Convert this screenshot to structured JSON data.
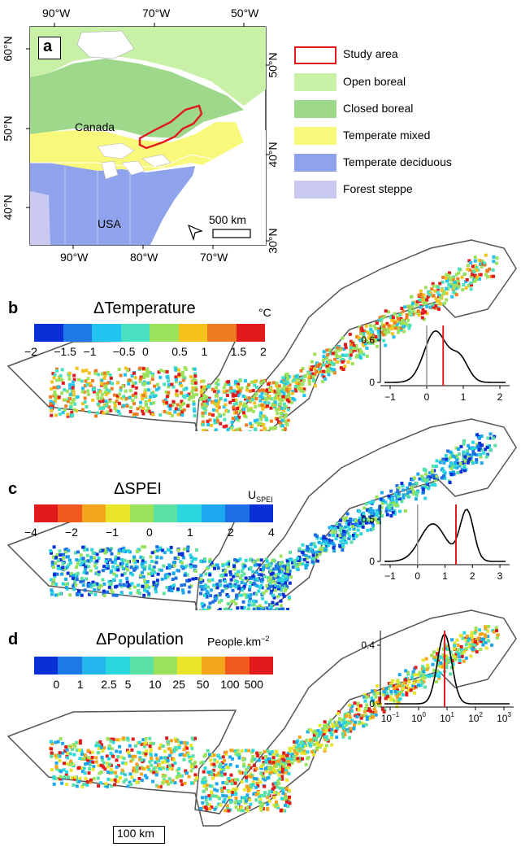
{
  "panel_a": {
    "letter": "a",
    "top_axis": [
      "90°W",
      "70°W",
      "50°W"
    ],
    "bottom_axis": [
      "90°W",
      "80°W",
      "70°W"
    ],
    "left_axis": [
      "60°N",
      "50°N",
      "40°N"
    ],
    "right_axis": [
      "50°N",
      "40°N",
      "30°N"
    ],
    "labels": {
      "canada": "Canada",
      "usa": "USA",
      "scale": "500 km"
    },
    "legend": [
      {
        "label": "Study area",
        "color": "#ffffff",
        "border": "#e31a1c"
      },
      {
        "label": "Open boreal",
        "color": "#c9f0a7"
      },
      {
        "label": "Closed boreal",
        "color": "#9ed88a"
      },
      {
        "label": "Temperate mixed",
        "color": "#f8f87a"
      },
      {
        "label": "Temperate deciduous",
        "color": "#8fa2ec"
      },
      {
        "label": "Forest steppe",
        "color": "#cac9f2"
      }
    ]
  },
  "panel_b": {
    "letter": "b",
    "title": "ΔTemperature",
    "unit": "°C",
    "scale_colors": [
      "#0b2fd6",
      "#1e78e6",
      "#22c3ee",
      "#49e0bf",
      "#9be25a",
      "#f4c21b",
      "#f07a1f",
      "#e31a1c"
    ],
    "scale_ticks": [
      "−2",
      "−1.5",
      "−1",
      "−0.5",
      "0",
      "0.5",
      "1",
      "1.5",
      "2"
    ],
    "density": {
      "y_ticks": [
        "0",
        "0.6"
      ],
      "x_ticks": [
        "−1",
        "0",
        "1",
        "2"
      ],
      "ref_line": 0,
      "mean_line": 0.45
    }
  },
  "panel_c": {
    "letter": "c",
    "title": "ΔSPEI",
    "unit": "U",
    "unit_sub": "SPEI",
    "scale_colors": [
      "#e31a1c",
      "#f05a1e",
      "#f4a51c",
      "#e8e42a",
      "#9be25a",
      "#59e0a2",
      "#2ad7df",
      "#1ca8ef",
      "#1e6fe6",
      "#0b2fd6"
    ],
    "scale_ticks": [
      "−4",
      "−2",
      "−1",
      "0",
      "1",
      "2",
      "4"
    ],
    "density": {
      "y_ticks": [
        "0",
        "0.5"
      ],
      "x_ticks": [
        "−1",
        "0",
        "1",
        "2",
        "3"
      ],
      "ref_line": 0,
      "mean_line": 1.4
    }
  },
  "panel_d": {
    "letter": "d",
    "title": "ΔPopulation",
    "unit": "People.km",
    "unit_sup": "−2",
    "scale_colors": [
      "#0b2fd6",
      "#1e78e6",
      "#22b5ee",
      "#2ad7df",
      "#59e0a2",
      "#9be25a",
      "#e8e42a",
      "#f4a51c",
      "#f05a1e",
      "#e31a1c"
    ],
    "scale_ticks": [
      "0",
      "1",
      "2.5",
      "5",
      "10",
      "25",
      "50",
      "100",
      "500"
    ],
    "density": {
      "y_ticks": [
        "0",
        "0.4"
      ],
      "x_ticks": [
        "10",
        "10",
        "10",
        "10",
        "10"
      ],
      "x_tick_exponents": [
        "−1",
        "0",
        "1",
        "2",
        "3"
      ],
      "ref_line": null,
      "mean_line": 0.85
    },
    "scalebar": "100 km"
  }
}
